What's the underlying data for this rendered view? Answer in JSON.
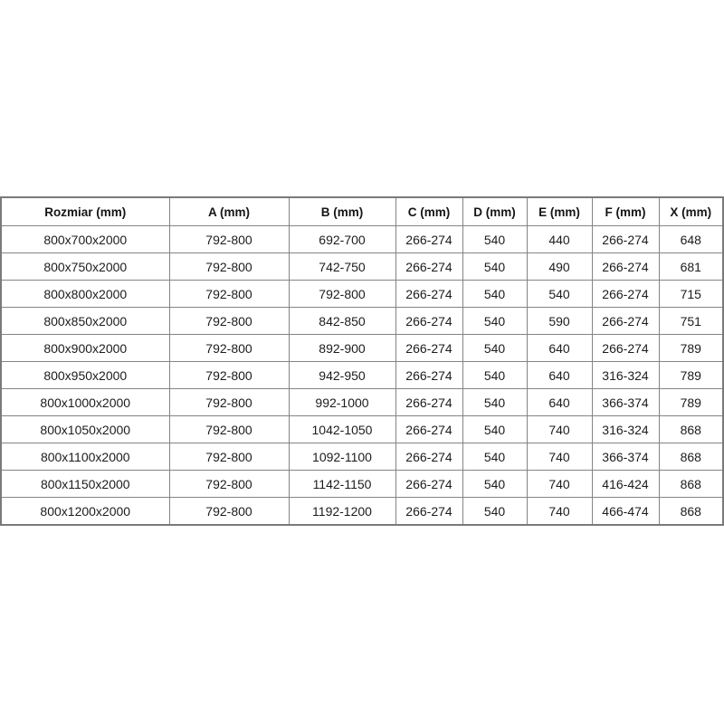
{
  "page": {
    "background_color": "#ffffff",
    "table_border_color": "#848484",
    "header_text_color": "#151515",
    "cell_text_color": "#1c1c1c"
  },
  "chart_data": {
    "type": "table",
    "title": "",
    "columns": [
      "Rozmiar (mm)",
      "A (mm)",
      "B (mm)",
      "C (mm)",
      "D (mm)",
      "E (mm)",
      "F (mm)",
      "X (mm)"
    ],
    "rows": [
      [
        "800x700x2000",
        "792-800",
        "692-700",
        "266-274",
        "540",
        "440",
        "266-274",
        "648"
      ],
      [
        "800x750x2000",
        "792-800",
        "742-750",
        "266-274",
        "540",
        "490",
        "266-274",
        "681"
      ],
      [
        "800x800x2000",
        "792-800",
        "792-800",
        "266-274",
        "540",
        "540",
        "266-274",
        "715"
      ],
      [
        "800x850x2000",
        "792-800",
        "842-850",
        "266-274",
        "540",
        "590",
        "266-274",
        "751"
      ],
      [
        "800x900x2000",
        "792-800",
        "892-900",
        "266-274",
        "540",
        "640",
        "266-274",
        "789"
      ],
      [
        "800x950x2000",
        "792-800",
        "942-950",
        "266-274",
        "540",
        "640",
        "316-324",
        "789"
      ],
      [
        "800x1000x2000",
        "792-800",
        "992-1000",
        "266-274",
        "540",
        "640",
        "366-374",
        "789"
      ],
      [
        "800x1050x2000",
        "792-800",
        "1042-1050",
        "266-274",
        "540",
        "740",
        "316-324",
        "868"
      ],
      [
        "800x1100x2000",
        "792-800",
        "1092-1100",
        "266-274",
        "540",
        "740",
        "366-374",
        "868"
      ],
      [
        "800x1150x2000",
        "792-800",
        "1142-1150",
        "266-274",
        "540",
        "740",
        "416-424",
        "868"
      ],
      [
        "800x1200x2000",
        "792-800",
        "1192-1200",
        "266-274",
        "540",
        "740",
        "466-474",
        "868"
      ]
    ],
    "layout": {
      "grid": true,
      "legend": "none",
      "header_bold": true,
      "cell_alignment": "center"
    }
  }
}
